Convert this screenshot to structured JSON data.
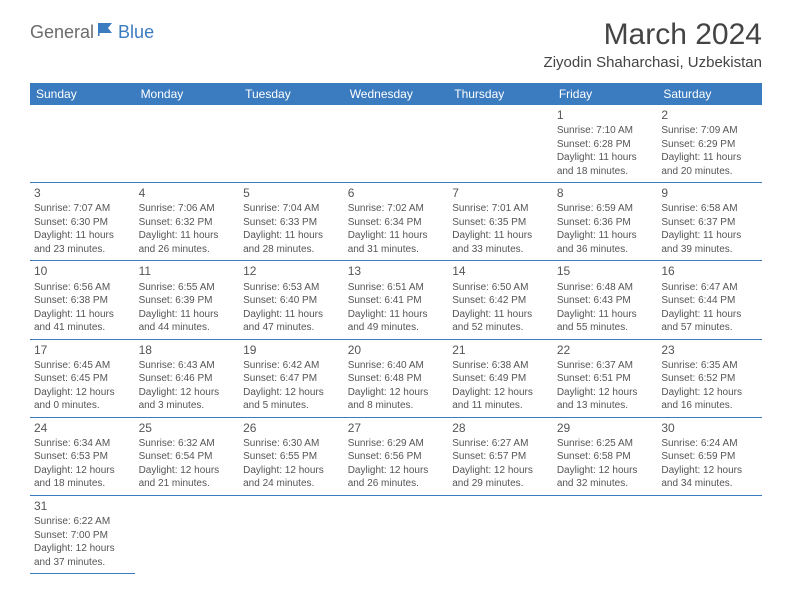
{
  "brand": {
    "general": "General",
    "blue": "Blue"
  },
  "title": "March 2024",
  "location": "Ziyodin Shaharchasi, Uzbekistan",
  "colors": {
    "header_bg": "#3b7bbf",
    "header_fg": "#ffffff",
    "border": "#3b7bbf",
    "text": "#555555",
    "title": "#444444",
    "logo_gray": "#6b6b6b",
    "logo_blue": "#3b7bbf",
    "background": "#ffffff"
  },
  "typography": {
    "month_title_size": 30,
    "location_size": 15,
    "weekday_size": 12,
    "daynum_size": 12,
    "body_size": 10
  },
  "weekdays": [
    "Sunday",
    "Monday",
    "Tuesday",
    "Wednesday",
    "Thursday",
    "Friday",
    "Saturday"
  ],
  "weeks": [
    [
      null,
      null,
      null,
      null,
      null,
      {
        "n": "1",
        "sr": "Sunrise: 7:10 AM",
        "ss": "Sunset: 6:28 PM",
        "dl": "Daylight: 11 hours and 18 minutes."
      },
      {
        "n": "2",
        "sr": "Sunrise: 7:09 AM",
        "ss": "Sunset: 6:29 PM",
        "dl": "Daylight: 11 hours and 20 minutes."
      }
    ],
    [
      {
        "n": "3",
        "sr": "Sunrise: 7:07 AM",
        "ss": "Sunset: 6:30 PM",
        "dl": "Daylight: 11 hours and 23 minutes."
      },
      {
        "n": "4",
        "sr": "Sunrise: 7:06 AM",
        "ss": "Sunset: 6:32 PM",
        "dl": "Daylight: 11 hours and 26 minutes."
      },
      {
        "n": "5",
        "sr": "Sunrise: 7:04 AM",
        "ss": "Sunset: 6:33 PM",
        "dl": "Daylight: 11 hours and 28 minutes."
      },
      {
        "n": "6",
        "sr": "Sunrise: 7:02 AM",
        "ss": "Sunset: 6:34 PM",
        "dl": "Daylight: 11 hours and 31 minutes."
      },
      {
        "n": "7",
        "sr": "Sunrise: 7:01 AM",
        "ss": "Sunset: 6:35 PM",
        "dl": "Daylight: 11 hours and 33 minutes."
      },
      {
        "n": "8",
        "sr": "Sunrise: 6:59 AM",
        "ss": "Sunset: 6:36 PM",
        "dl": "Daylight: 11 hours and 36 minutes."
      },
      {
        "n": "9",
        "sr": "Sunrise: 6:58 AM",
        "ss": "Sunset: 6:37 PM",
        "dl": "Daylight: 11 hours and 39 minutes."
      }
    ],
    [
      {
        "n": "10",
        "sr": "Sunrise: 6:56 AM",
        "ss": "Sunset: 6:38 PM",
        "dl": "Daylight: 11 hours and 41 minutes."
      },
      {
        "n": "11",
        "sr": "Sunrise: 6:55 AM",
        "ss": "Sunset: 6:39 PM",
        "dl": "Daylight: 11 hours and 44 minutes."
      },
      {
        "n": "12",
        "sr": "Sunrise: 6:53 AM",
        "ss": "Sunset: 6:40 PM",
        "dl": "Daylight: 11 hours and 47 minutes."
      },
      {
        "n": "13",
        "sr": "Sunrise: 6:51 AM",
        "ss": "Sunset: 6:41 PM",
        "dl": "Daylight: 11 hours and 49 minutes."
      },
      {
        "n": "14",
        "sr": "Sunrise: 6:50 AM",
        "ss": "Sunset: 6:42 PM",
        "dl": "Daylight: 11 hours and 52 minutes."
      },
      {
        "n": "15",
        "sr": "Sunrise: 6:48 AM",
        "ss": "Sunset: 6:43 PM",
        "dl": "Daylight: 11 hours and 55 minutes."
      },
      {
        "n": "16",
        "sr": "Sunrise: 6:47 AM",
        "ss": "Sunset: 6:44 PM",
        "dl": "Daylight: 11 hours and 57 minutes."
      }
    ],
    [
      {
        "n": "17",
        "sr": "Sunrise: 6:45 AM",
        "ss": "Sunset: 6:45 PM",
        "dl": "Daylight: 12 hours and 0 minutes."
      },
      {
        "n": "18",
        "sr": "Sunrise: 6:43 AM",
        "ss": "Sunset: 6:46 PM",
        "dl": "Daylight: 12 hours and 3 minutes."
      },
      {
        "n": "19",
        "sr": "Sunrise: 6:42 AM",
        "ss": "Sunset: 6:47 PM",
        "dl": "Daylight: 12 hours and 5 minutes."
      },
      {
        "n": "20",
        "sr": "Sunrise: 6:40 AM",
        "ss": "Sunset: 6:48 PM",
        "dl": "Daylight: 12 hours and 8 minutes."
      },
      {
        "n": "21",
        "sr": "Sunrise: 6:38 AM",
        "ss": "Sunset: 6:49 PM",
        "dl": "Daylight: 12 hours and 11 minutes."
      },
      {
        "n": "22",
        "sr": "Sunrise: 6:37 AM",
        "ss": "Sunset: 6:51 PM",
        "dl": "Daylight: 12 hours and 13 minutes."
      },
      {
        "n": "23",
        "sr": "Sunrise: 6:35 AM",
        "ss": "Sunset: 6:52 PM",
        "dl": "Daylight: 12 hours and 16 minutes."
      }
    ],
    [
      {
        "n": "24",
        "sr": "Sunrise: 6:34 AM",
        "ss": "Sunset: 6:53 PM",
        "dl": "Daylight: 12 hours and 18 minutes."
      },
      {
        "n": "25",
        "sr": "Sunrise: 6:32 AM",
        "ss": "Sunset: 6:54 PM",
        "dl": "Daylight: 12 hours and 21 minutes."
      },
      {
        "n": "26",
        "sr": "Sunrise: 6:30 AM",
        "ss": "Sunset: 6:55 PM",
        "dl": "Daylight: 12 hours and 24 minutes."
      },
      {
        "n": "27",
        "sr": "Sunrise: 6:29 AM",
        "ss": "Sunset: 6:56 PM",
        "dl": "Daylight: 12 hours and 26 minutes."
      },
      {
        "n": "28",
        "sr": "Sunrise: 6:27 AM",
        "ss": "Sunset: 6:57 PM",
        "dl": "Daylight: 12 hours and 29 minutes."
      },
      {
        "n": "29",
        "sr": "Sunrise: 6:25 AM",
        "ss": "Sunset: 6:58 PM",
        "dl": "Daylight: 12 hours and 32 minutes."
      },
      {
        "n": "30",
        "sr": "Sunrise: 6:24 AM",
        "ss": "Sunset: 6:59 PM",
        "dl": "Daylight: 12 hours and 34 minutes."
      }
    ],
    [
      {
        "n": "31",
        "sr": "Sunrise: 6:22 AM",
        "ss": "Sunset: 7:00 PM",
        "dl": "Daylight: 12 hours and 37 minutes."
      },
      null,
      null,
      null,
      null,
      null,
      null
    ]
  ]
}
